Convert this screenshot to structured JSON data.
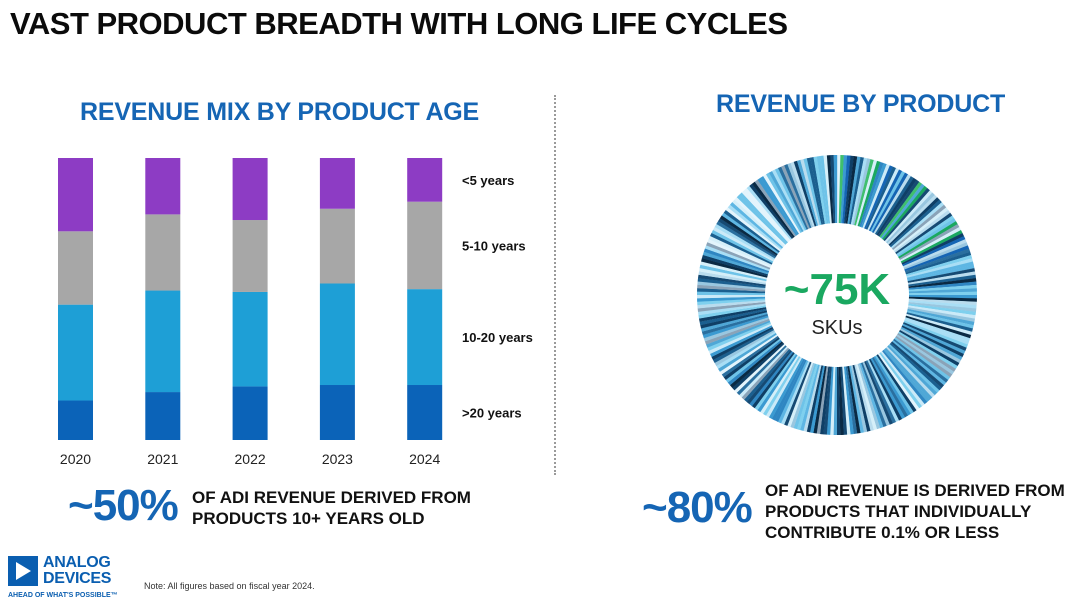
{
  "page": {
    "title": "VAST PRODUCT BREADTH WITH LONG LIFE CYCLES"
  },
  "colors": {
    "accent": "#1565b4",
    "purple": "#8d3cc4",
    "gray": "#a7a7a7",
    "light_blue": "#1e9fd6",
    "dark_blue": "#0b63b8"
  },
  "chart_data": [
    {
      "type": "bar",
      "stacked": true,
      "title": "REVENUE MIX BY PRODUCT AGE",
      "categories": [
        "2020",
        "2021",
        "2022",
        "2023",
        "2024"
      ],
      "ylim": [
        0,
        100
      ],
      "xlabel": "",
      "ylabel": "",
      "series": [
        {
          "name": ">20 years",
          "color": "#0b63b8",
          "values": [
            14,
            17,
            19,
            19.5,
            19.5
          ]
        },
        {
          "name": "10-20 years",
          "color": "#1e9fd6",
          "values": [
            34,
            36,
            33.5,
            36,
            34
          ]
        },
        {
          "name": "5-10 years",
          "color": "#a7a7a7",
          "values": [
            26,
            27,
            25.5,
            26.5,
            31
          ]
        },
        {
          "name": "<5 years",
          "color": "#8d3cc4",
          "values": [
            26,
            20,
            22,
            18,
            15.5
          ]
        }
      ]
    },
    {
      "type": "pie",
      "title": "REVENUE BY PRODUCT",
      "center_value": "~75K",
      "center_label": "SKUs"
    }
  ],
  "stats": {
    "left": {
      "value": "~50%",
      "lines": [
        "OF ADI REVENUE DERIVED FROM",
        "PRODUCTS 10+ YEARS OLD"
      ]
    },
    "right": {
      "value": "~80%",
      "lines": [
        "OF ADI REVENUE IS DERIVED FROM",
        "PRODUCTS THAT INDIVIDUALLY",
        "CONTRIBUTE 0.1% OR LESS"
      ]
    }
  },
  "footer": {
    "logo_line1": "ANALOG",
    "logo_line2": "DEVICES",
    "tagline": "AHEAD OF WHAT'S POSSIBLE™",
    "note": "Note: All figures based on fiscal year 2024."
  }
}
